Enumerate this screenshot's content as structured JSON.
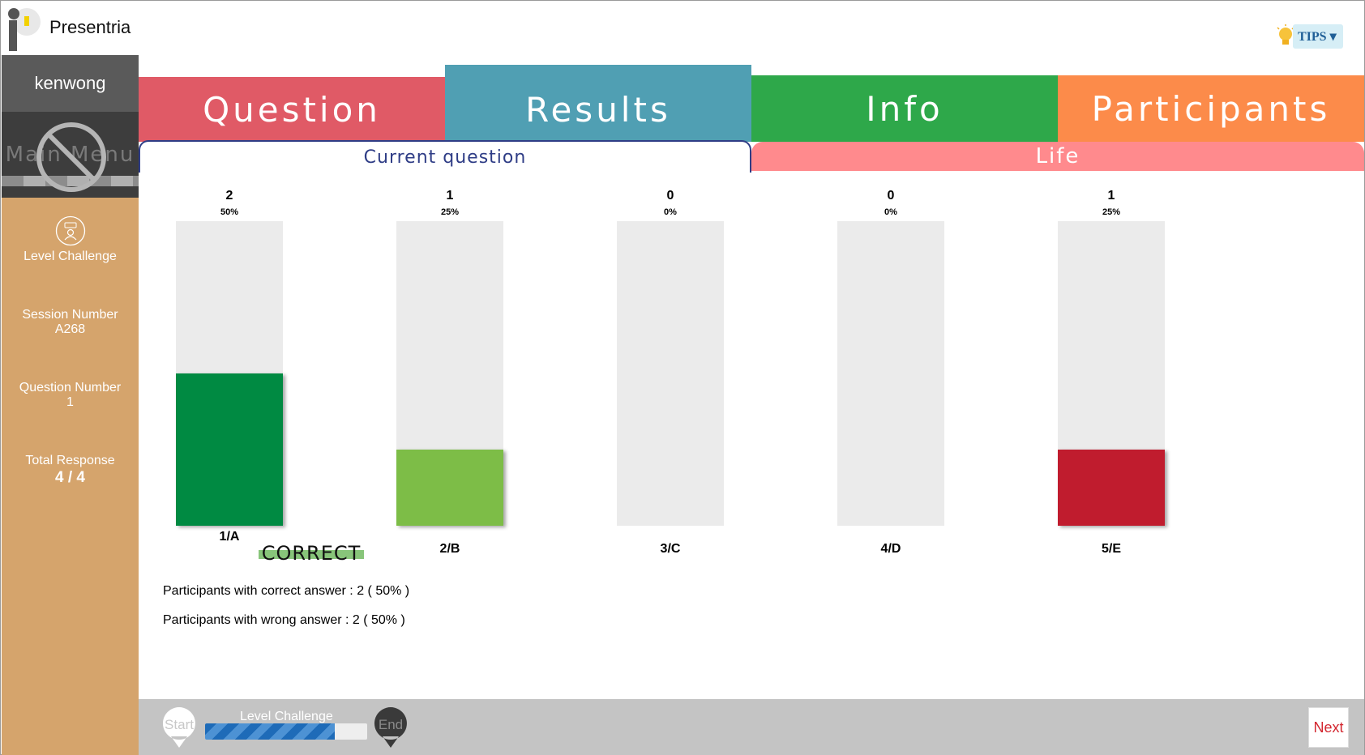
{
  "header": {
    "brand": "Presentria",
    "tips_label": "TIPS ▾"
  },
  "sidebar": {
    "username": "kenwong",
    "main_menu_label": "Main Menu",
    "mode_label": "Level Challenge",
    "session_label": "Session Number",
    "session_value": "A268",
    "question_label": "Question Number",
    "question_value": "1",
    "response_label": "Total Response",
    "response_value": "4 / 4"
  },
  "tabs": {
    "question": "Question",
    "results": "Results",
    "info": "Info",
    "participants": "Participants"
  },
  "subtabs": {
    "current": "Current question",
    "life": "Life"
  },
  "chart_data": {
    "type": "bar",
    "categories": [
      "1/A",
      "2/B",
      "3/C",
      "4/D",
      "5/E"
    ],
    "values": [
      2,
      1,
      0,
      0,
      1
    ],
    "percent_labels": [
      "50%",
      "25%",
      "0%",
      "0%",
      "25%"
    ],
    "percent": [
      50,
      25,
      0,
      0,
      25
    ],
    "ylim": [
      0,
      100
    ],
    "bar_colors": [
      "#008a42",
      "#7dbd47",
      "#cccccc",
      "#cccccc",
      "#c01e2e"
    ],
    "track_color": "#ebebeb",
    "correct_category": "1/A",
    "correct_label": "CORRECT"
  },
  "summary": {
    "correct": "Participants with correct answer : 2 ( 50% )",
    "wrong": "Participants with wrong answer : 2 ( 50% )"
  },
  "footer": {
    "start_label": "Start",
    "end_label": "End",
    "progress_label": "Level Challenge",
    "progress_fraction": 0.8,
    "next_label": "Next"
  }
}
